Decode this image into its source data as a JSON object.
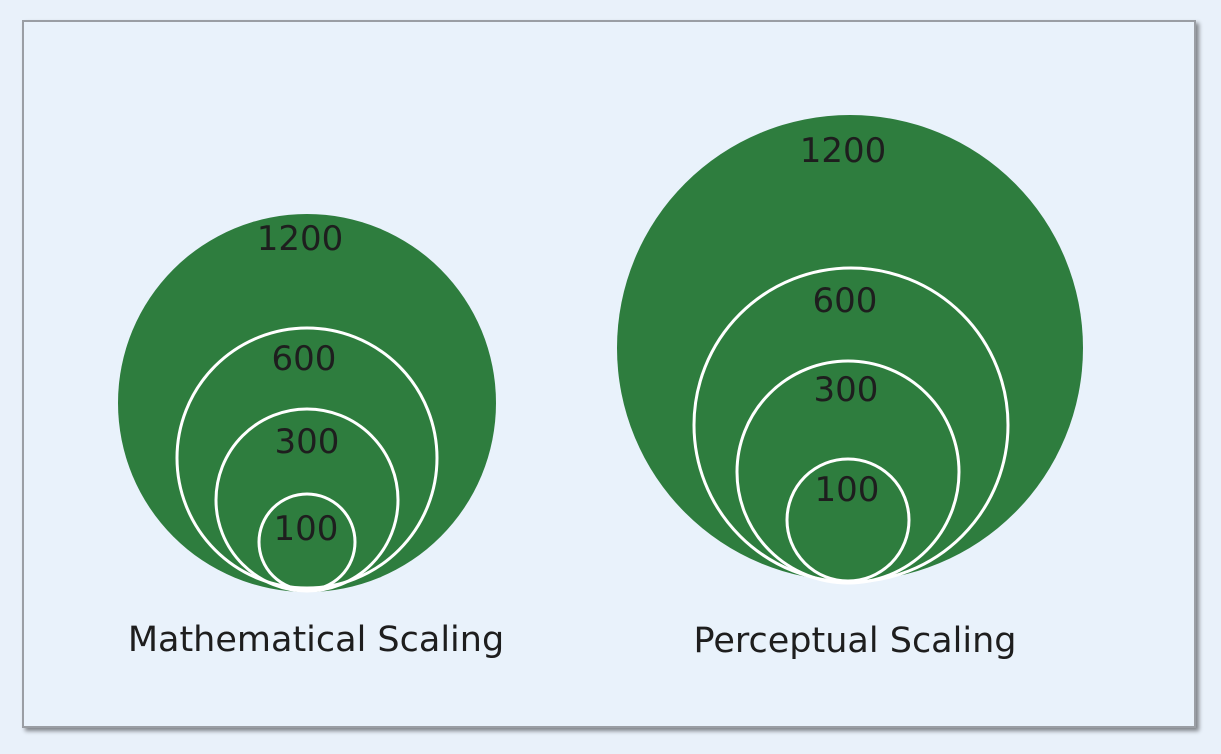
{
  "colors": {
    "circle_fill": "#2e7d3e",
    "circle_outline": "#ffffff",
    "background": "#e9f2fb",
    "text": "#1e1e1e"
  },
  "diagrams": [
    {
      "id": "mathematical",
      "caption": "Mathematical Scaling",
      "circles": [
        {
          "value": 1200,
          "label": "1200"
        },
        {
          "value": 600,
          "label": "600"
        },
        {
          "value": 300,
          "label": "300"
        },
        {
          "value": 100,
          "label": "100"
        }
      ]
    },
    {
      "id": "perceptual",
      "caption": "Perceptual Scaling",
      "circles": [
        {
          "value": 1200,
          "label": "1200"
        },
        {
          "value": 600,
          "label": "600"
        },
        {
          "value": 300,
          "label": "300"
        },
        {
          "value": 100,
          "label": "100"
        }
      ]
    }
  ]
}
